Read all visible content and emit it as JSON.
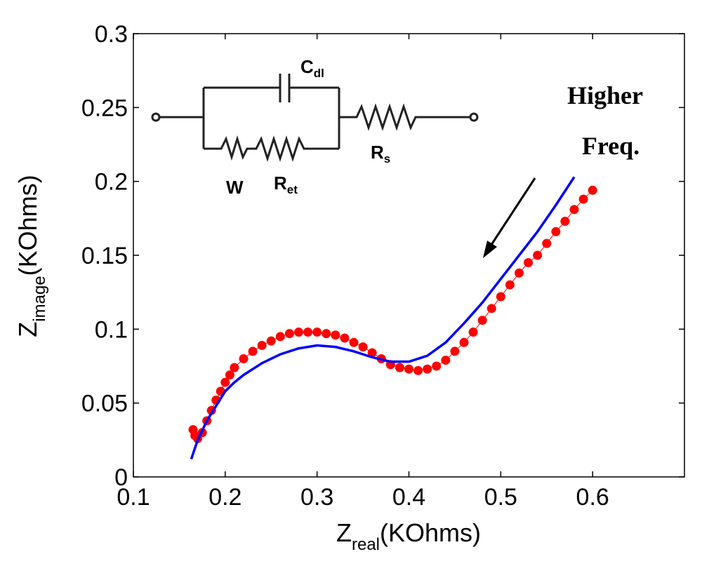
{
  "chart_data": {
    "type": "scatter",
    "xlabel": [
      "Z",
      "real",
      "(KOhms)"
    ],
    "ylabel": [
      "Z",
      "image",
      "(KOhms)"
    ],
    "annotation": [
      "Higher",
      "Freq."
    ],
    "xlim": [
      0.1,
      0.7
    ],
    "ylim": [
      0,
      0.3
    ],
    "xticks": [
      0.1,
      0.2,
      0.3,
      0.4,
      0.5,
      0.6
    ],
    "yticks": [
      0,
      0.05,
      0.1,
      0.15,
      0.2,
      0.25,
      0.3
    ],
    "grid": false,
    "series": [
      {
        "style": "markers",
        "color": "#ff0000",
        "x": [
          0.165,
          0.167,
          0.17,
          0.175,
          0.18,
          0.185,
          0.19,
          0.195,
          0.2,
          0.205,
          0.21,
          0.22,
          0.23,
          0.24,
          0.25,
          0.26,
          0.27,
          0.28,
          0.29,
          0.3,
          0.31,
          0.32,
          0.33,
          0.34,
          0.35,
          0.36,
          0.37,
          0.38,
          0.39,
          0.4,
          0.41,
          0.42,
          0.43,
          0.44,
          0.45,
          0.46,
          0.47,
          0.48,
          0.49,
          0.5,
          0.51,
          0.52,
          0.53,
          0.54,
          0.55,
          0.56,
          0.57,
          0.58,
          0.59,
          0.6
        ],
        "values": [
          0.032,
          0.028,
          0.026,
          0.03,
          0.038,
          0.045,
          0.052,
          0.058,
          0.064,
          0.069,
          0.074,
          0.08,
          0.085,
          0.089,
          0.092,
          0.095,
          0.097,
          0.098,
          0.098,
          0.098,
          0.097,
          0.096,
          0.094,
          0.091,
          0.088,
          0.084,
          0.08,
          0.076,
          0.074,
          0.073,
          0.072,
          0.073,
          0.075,
          0.079,
          0.085,
          0.091,
          0.098,
          0.106,
          0.114,
          0.122,
          0.13,
          0.138,
          0.145,
          0.15,
          0.158,
          0.166,
          0.173,
          0.181,
          0.188,
          0.194
        ]
      },
      {
        "style": "line",
        "color": "#0000ff",
        "x": [
          0.163,
          0.17,
          0.18,
          0.19,
          0.2,
          0.21,
          0.22,
          0.24,
          0.26,
          0.28,
          0.3,
          0.32,
          0.34,
          0.36,
          0.38,
          0.4,
          0.42,
          0.44,
          0.46,
          0.48,
          0.5,
          0.52,
          0.54,
          0.56,
          0.58
        ],
        "values": [
          0.012,
          0.025,
          0.038,
          0.048,
          0.058,
          0.064,
          0.069,
          0.077,
          0.083,
          0.087,
          0.089,
          0.088,
          0.085,
          0.081,
          0.078,
          0.078,
          0.082,
          0.091,
          0.104,
          0.118,
          0.134,
          0.15,
          0.166,
          0.184,
          0.203
        ]
      }
    ]
  },
  "inset": {
    "cdl": [
      "C",
      "dl"
    ],
    "w": "W",
    "ret": [
      "R",
      "et"
    ],
    "rs": [
      "R",
      "s"
    ]
  }
}
